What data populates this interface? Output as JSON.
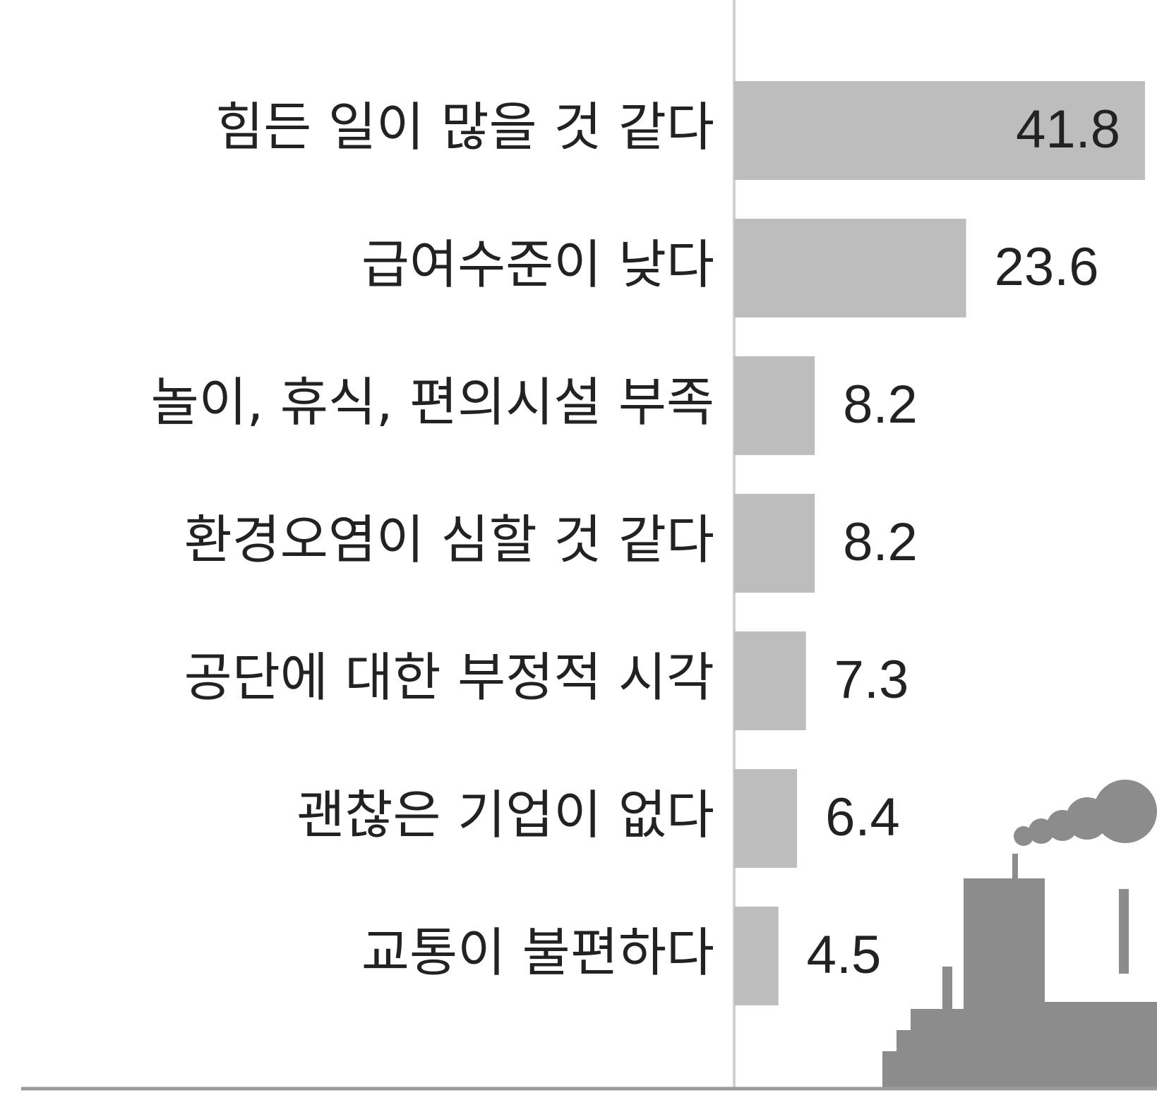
{
  "chart_data": {
    "type": "bar",
    "orientation": "horizontal",
    "categories": [
      "힘든 일이 많을 것 같다",
      "급여수준이 낮다",
      "놀이, 휴식, 편의시설 부족",
      "환경오염이 심할 것 같다",
      "공단에 대한 부정적 시각",
      "괜찮은 기업이 없다",
      "교통이 불편하다"
    ],
    "values": [
      41.8,
      23.6,
      8.2,
      8.2,
      7.3,
      6.4,
      4.5
    ],
    "color": "#bdbdbd"
  }
}
